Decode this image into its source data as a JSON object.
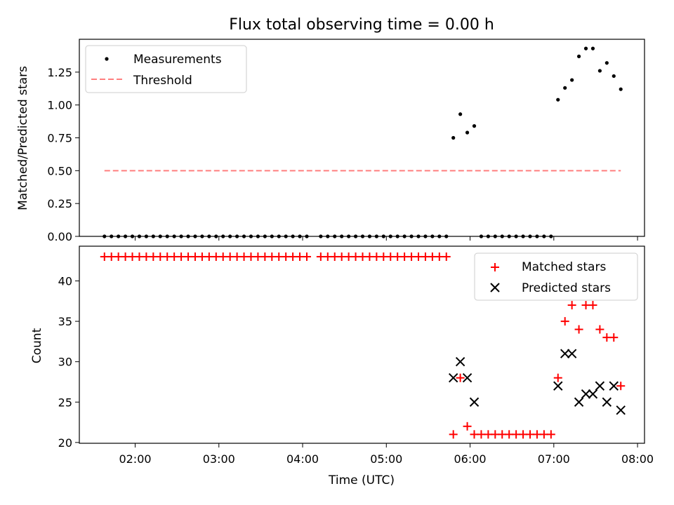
{
  "title": "Flux total observing time = 0.00 h",
  "colors": {
    "measurements": "#000000",
    "threshold": "#ff7f7f",
    "matched": "#ff0000",
    "predicted": "#000000"
  },
  "chart_data": [
    {
      "type": "scatter",
      "ylabel": "Matched/Predicted stars",
      "ylim": [
        0,
        1.5
      ],
      "yticks": [
        0.0,
        0.25,
        0.5,
        0.75,
        1.0,
        1.25
      ],
      "ytick_labels": [
        "0.00",
        "0.25",
        "0.50",
        "0.75",
        "1.00",
        "1.25"
      ],
      "xlim": [
        "01:20",
        "08:05"
      ],
      "legend": {
        "position": "top-left",
        "entries": [
          "Measurements",
          "Threshold"
        ]
      },
      "series": [
        {
          "name": "Measurements",
          "points": [
            [
              "01:38",
              0
            ],
            [
              "01:43",
              0
            ],
            [
              "01:48",
              0
            ],
            [
              "01:53",
              0
            ],
            [
              "01:58",
              0
            ],
            [
              "02:03",
              0
            ],
            [
              "02:08",
              0
            ],
            [
              "02:13",
              0
            ],
            [
              "02:18",
              0
            ],
            [
              "02:23",
              0
            ],
            [
              "02:28",
              0
            ],
            [
              "02:33",
              0
            ],
            [
              "02:38",
              0
            ],
            [
              "02:43",
              0
            ],
            [
              "02:48",
              0
            ],
            [
              "02:53",
              0
            ],
            [
              "02:58",
              0
            ],
            [
              "03:03",
              0
            ],
            [
              "03:08",
              0
            ],
            [
              "03:13",
              0
            ],
            [
              "03:18",
              0
            ],
            [
              "03:23",
              0
            ],
            [
              "03:28",
              0
            ],
            [
              "03:33",
              0
            ],
            [
              "03:38",
              0
            ],
            [
              "03:43",
              0
            ],
            [
              "03:48",
              0
            ],
            [
              "03:53",
              0
            ],
            [
              "03:58",
              0
            ],
            [
              "04:03",
              0
            ],
            [
              "04:13",
              0
            ],
            [
              "04:18",
              0
            ],
            [
              "04:23",
              0
            ],
            [
              "04:28",
              0
            ],
            [
              "04:33",
              0
            ],
            [
              "04:38",
              0
            ],
            [
              "04:43",
              0
            ],
            [
              "04:48",
              0
            ],
            [
              "04:53",
              0
            ],
            [
              "04:58",
              0
            ],
            [
              "05:03",
              0
            ],
            [
              "05:08",
              0
            ],
            [
              "05:13",
              0
            ],
            [
              "05:18",
              0
            ],
            [
              "05:23",
              0
            ],
            [
              "05:28",
              0
            ],
            [
              "05:33",
              0
            ],
            [
              "05:38",
              0
            ],
            [
              "05:43",
              0
            ],
            [
              "05:48",
              0.75
            ],
            [
              "05:53",
              0.93
            ],
            [
              "05:58",
              0.79
            ],
            [
              "06:03",
              0.84
            ],
            [
              "06:08",
              0
            ],
            [
              "06:13",
              0
            ],
            [
              "06:18",
              0
            ],
            [
              "06:23",
              0
            ],
            [
              "06:28",
              0
            ],
            [
              "06:33",
              0
            ],
            [
              "06:38",
              0
            ],
            [
              "06:43",
              0
            ],
            [
              "06:48",
              0
            ],
            [
              "06:53",
              0
            ],
            [
              "06:58",
              0
            ],
            [
              "07:03",
              1.04
            ],
            [
              "07:08",
              1.13
            ],
            [
              "07:13",
              1.19
            ],
            [
              "07:18",
              1.37
            ],
            [
              "07:23",
              1.43
            ],
            [
              "07:28",
              1.43
            ],
            [
              "07:33",
              1.26
            ],
            [
              "07:38",
              1.32
            ],
            [
              "07:43",
              1.22
            ],
            [
              "07:48",
              1.12
            ]
          ]
        },
        {
          "name": "Threshold",
          "line": [
            [
              "01:38",
              0.5
            ],
            [
              "07:48",
              0.5
            ]
          ]
        }
      ]
    },
    {
      "type": "scatter",
      "xlabel": "Time (UTC)",
      "ylabel": "Count",
      "ylim": [
        19.9,
        44.3
      ],
      "yticks": [
        20,
        25,
        30,
        35,
        40
      ],
      "ytick_labels": [
        "20",
        "25",
        "30",
        "35",
        "40"
      ],
      "xlim": [
        "01:20",
        "08:05"
      ],
      "xticks": [
        "02:00",
        "03:00",
        "04:00",
        "05:00",
        "06:00",
        "07:00",
        "08:00"
      ],
      "legend": {
        "position": "top-right",
        "entries": [
          "Matched stars",
          "Predicted stars"
        ]
      },
      "series": [
        {
          "name": "Matched stars",
          "points": [
            [
              "01:38",
              43
            ],
            [
              "01:43",
              43
            ],
            [
              "01:48",
              43
            ],
            [
              "01:53",
              43
            ],
            [
              "01:58",
              43
            ],
            [
              "02:03",
              43
            ],
            [
              "02:08",
              43
            ],
            [
              "02:13",
              43
            ],
            [
              "02:18",
              43
            ],
            [
              "02:23",
              43
            ],
            [
              "02:28",
              43
            ],
            [
              "02:33",
              43
            ],
            [
              "02:38",
              43
            ],
            [
              "02:43",
              43
            ],
            [
              "02:48",
              43
            ],
            [
              "02:53",
              43
            ],
            [
              "02:58",
              43
            ],
            [
              "03:03",
              43
            ],
            [
              "03:08",
              43
            ],
            [
              "03:13",
              43
            ],
            [
              "03:18",
              43
            ],
            [
              "03:23",
              43
            ],
            [
              "03:28",
              43
            ],
            [
              "03:33",
              43
            ],
            [
              "03:38",
              43
            ],
            [
              "03:43",
              43
            ],
            [
              "03:48",
              43
            ],
            [
              "03:53",
              43
            ],
            [
              "03:58",
              43
            ],
            [
              "04:03",
              43
            ],
            [
              "04:13",
              43
            ],
            [
              "04:18",
              43
            ],
            [
              "04:23",
              43
            ],
            [
              "04:28",
              43
            ],
            [
              "04:33",
              43
            ],
            [
              "04:38",
              43
            ],
            [
              "04:43",
              43
            ],
            [
              "04:48",
              43
            ],
            [
              "04:53",
              43
            ],
            [
              "04:58",
              43
            ],
            [
              "05:03",
              43
            ],
            [
              "05:08",
              43
            ],
            [
              "05:13",
              43
            ],
            [
              "05:18",
              43
            ],
            [
              "05:23",
              43
            ],
            [
              "05:28",
              43
            ],
            [
              "05:33",
              43
            ],
            [
              "05:38",
              43
            ],
            [
              "05:43",
              43
            ],
            [
              "05:48",
              21
            ],
            [
              "05:53",
              28
            ],
            [
              "05:58",
              22
            ],
            [
              "06:03",
              21
            ],
            [
              "06:08",
              21
            ],
            [
              "06:13",
              21
            ],
            [
              "06:18",
              21
            ],
            [
              "06:23",
              21
            ],
            [
              "06:28",
              21
            ],
            [
              "06:33",
              21
            ],
            [
              "06:38",
              21
            ],
            [
              "06:43",
              21
            ],
            [
              "06:48",
              21
            ],
            [
              "06:53",
              21
            ],
            [
              "06:58",
              21
            ],
            [
              "07:03",
              28
            ],
            [
              "07:08",
              35
            ],
            [
              "07:13",
              37
            ],
            [
              "07:18",
              34
            ],
            [
              "07:23",
              37
            ],
            [
              "07:28",
              37
            ],
            [
              "07:33",
              34
            ],
            [
              "07:38",
              33
            ],
            [
              "07:43",
              33
            ],
            [
              "07:48",
              27
            ]
          ]
        },
        {
          "name": "Predicted stars",
          "points": [
            [
              "05:48",
              28
            ],
            [
              "05:53",
              30
            ],
            [
              "05:58",
              28
            ],
            [
              "06:03",
              25
            ],
            [
              "07:03",
              27
            ],
            [
              "07:08",
              31
            ],
            [
              "07:13",
              31
            ],
            [
              "07:18",
              25
            ],
            [
              "07:23",
              26
            ],
            [
              "07:28",
              26
            ],
            [
              "07:33",
              27
            ],
            [
              "07:38",
              25
            ],
            [
              "07:43",
              27
            ],
            [
              "07:48",
              24
            ]
          ]
        }
      ]
    }
  ]
}
